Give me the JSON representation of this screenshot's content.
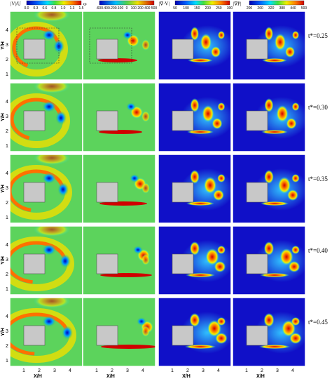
{
  "colorbars": [
    {
      "label": "|V|/U",
      "ticks": [
        "0.0",
        "0.3",
        "0.6",
        "0.8",
        "1.0",
        "1.3",
        "1.5"
      ]
    },
    {
      "label": "ω",
      "ticks": [
        "-600",
        "-400",
        "-200",
        "-100",
        "0",
        "100",
        "200",
        "400",
        "500"
      ]
    },
    {
      "label": "|∇·V|",
      "ticks": [
        "50",
        "100",
        "150",
        "200",
        "250",
        "300"
      ]
    },
    {
      "label": "|∇P|",
      "ticks": [
        "200",
        "260",
        "320",
        "380",
        "440",
        "500"
      ]
    }
  ],
  "rows": [
    {
      "time": "t*=0.25"
    },
    {
      "time": "t*=0.30"
    },
    {
      "time": "t*=0.35"
    },
    {
      "time": "t*=0.40"
    },
    {
      "time": "t*=0.45"
    }
  ],
  "y_axis": {
    "label": "Y/H",
    "ticks": [
      "1",
      "2",
      "3",
      "4"
    ]
  },
  "x_axis": {
    "label": "X/H",
    "ticks": [
      "1",
      "2",
      "3",
      "4"
    ]
  }
}
